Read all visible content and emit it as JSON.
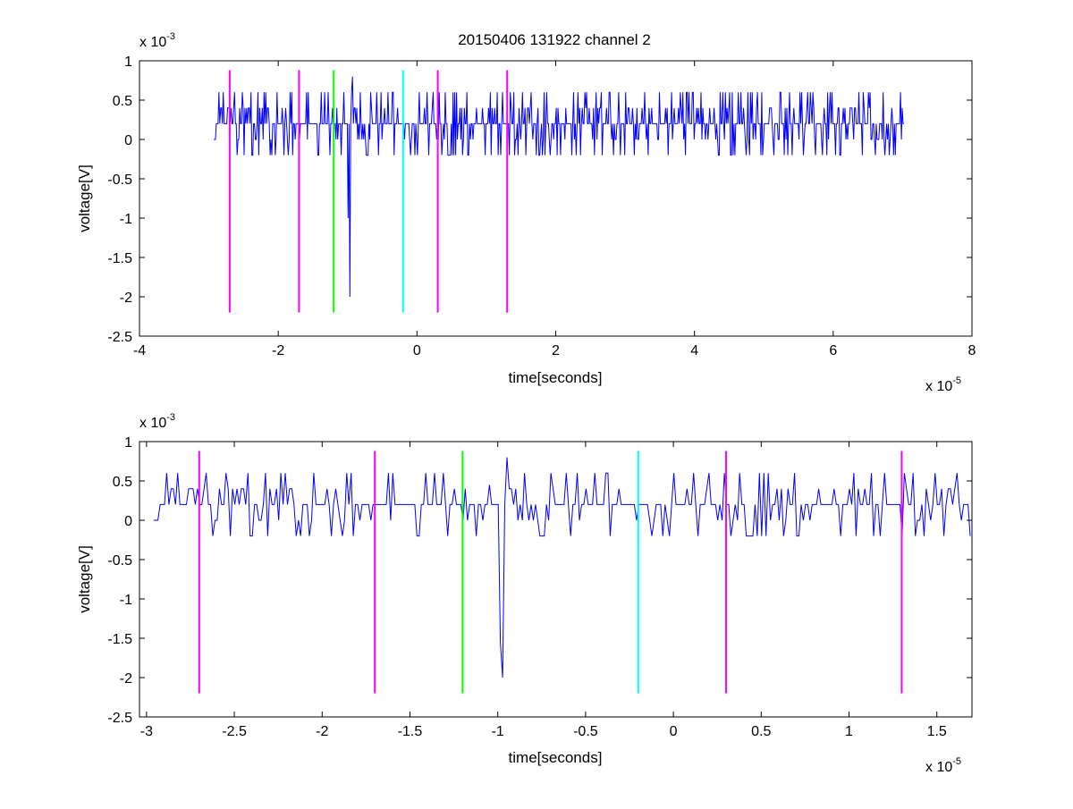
{
  "title": "20150406 131922 channel 2",
  "colors": {
    "signal": "#0000ff",
    "magenta": "#ff00ff",
    "green": "#00ff00",
    "cyan": "#00ffff",
    "axes": "#000000",
    "background": "#ffffff"
  },
  "chart_data": [
    {
      "type": "line",
      "title": "20150406 131922 channel 2",
      "xlabel": "time[seconds]",
      "ylabel": "voltage[V]",
      "x_multiplier": "x 10",
      "x_exponent": "-5",
      "y_multiplier": "x 10",
      "y_exponent": "-3",
      "xlim": [
        -4,
        8
      ],
      "ylim": [
        -2.5,
        1
      ],
      "x_ticks": [
        -4,
        -2,
        0,
        2,
        4,
        6,
        8
      ],
      "x_tick_labels": [
        "-4",
        "-2",
        "0",
        "2",
        "4",
        "6",
        "8"
      ],
      "y_ticks": [
        1,
        0.5,
        0,
        -0.5,
        -1,
        -1.5,
        -2,
        -2.5
      ],
      "y_tick_labels": [
        "1",
        "0.5",
        "0",
        "-0.5",
        "-1",
        "-1.5",
        "-2",
        "-2.5"
      ],
      "grid": false,
      "signal_range": [
        -2.93,
        7.03
      ],
      "signal_baseline": 0.2,
      "signal_noise_levels": [
        -0.2,
        0,
        0.2,
        0.4,
        0.6
      ],
      "signal_spikes": [
        {
          "x": -0.97,
          "y": -2.0
        },
        {
          "x": -0.99,
          "y": -1.0
        },
        {
          "x": -1.05,
          "y": 0.6
        },
        {
          "x": -0.93,
          "y": 0.8
        }
      ],
      "markers": [
        {
          "x": -2.7,
          "color": "magenta",
          "y_range": [
            -2.2,
            0.88
          ]
        },
        {
          "x": -1.7,
          "color": "magenta",
          "y_range": [
            -2.2,
            0.88
          ]
        },
        {
          "x": -1.2,
          "color": "green",
          "y_range": [
            -2.2,
            0.88
          ]
        },
        {
          "x": -0.2,
          "color": "cyan",
          "y_range": [
            -2.2,
            0.88
          ]
        },
        {
          "x": 0.3,
          "color": "magenta",
          "y_range": [
            -2.2,
            0.88
          ]
        },
        {
          "x": 1.3,
          "color": "magenta",
          "y_range": [
            -2.2,
            0.88
          ]
        }
      ]
    },
    {
      "type": "line",
      "title": "",
      "xlabel": "time[seconds]",
      "ylabel": "voltage[V]",
      "x_multiplier": "x 10",
      "x_exponent": "-5",
      "y_multiplier": "x 10",
      "y_exponent": "-3",
      "xlim": [
        -3.04,
        1.7
      ],
      "ylim": [
        -2.5,
        1
      ],
      "x_ticks": [
        -3,
        -2.5,
        -2,
        -1.5,
        -1,
        -0.5,
        0,
        0.5,
        1,
        1.5
      ],
      "x_tick_labels": [
        "-3",
        "-2.5",
        "-2",
        "-1.5",
        "-1",
        "-0.5",
        "0",
        "0.5",
        "1",
        "1.5"
      ],
      "y_ticks": [
        1,
        0.5,
        0,
        -0.5,
        -1,
        -1.5,
        -2,
        -2.5
      ],
      "y_tick_labels": [
        "1",
        "0.5",
        "0",
        "-0.5",
        "-1",
        "-1.5",
        "-2",
        "-2.5"
      ],
      "grid": false,
      "signal_range": [
        -2.96,
        1.7
      ],
      "signal_baseline": 0.2,
      "signal_noise_levels": [
        -0.2,
        0,
        0.2,
        0.4,
        0.6
      ],
      "signal_spikes": [
        {
          "x": -0.97,
          "y": -2.0
        },
        {
          "x": -0.98,
          "y": -1.55
        },
        {
          "x": -0.95,
          "y": 0.8
        },
        {
          "x": -1.05,
          "y": 0.45
        }
      ],
      "markers": [
        {
          "x": -2.7,
          "color": "magenta",
          "y_range": [
            -2.2,
            0.88
          ]
        },
        {
          "x": -1.7,
          "color": "magenta",
          "y_range": [
            -2.2,
            0.88
          ]
        },
        {
          "x": -1.2,
          "color": "green",
          "y_range": [
            -2.2,
            0.88
          ]
        },
        {
          "x": -0.2,
          "color": "cyan",
          "y_range": [
            -2.2,
            0.88
          ]
        },
        {
          "x": 0.3,
          "color": "magenta",
          "y_range": [
            -2.2,
            0.88
          ]
        },
        {
          "x": 1.3,
          "color": "magenta",
          "y_range": [
            -2.2,
            0.88
          ]
        }
      ]
    }
  ]
}
